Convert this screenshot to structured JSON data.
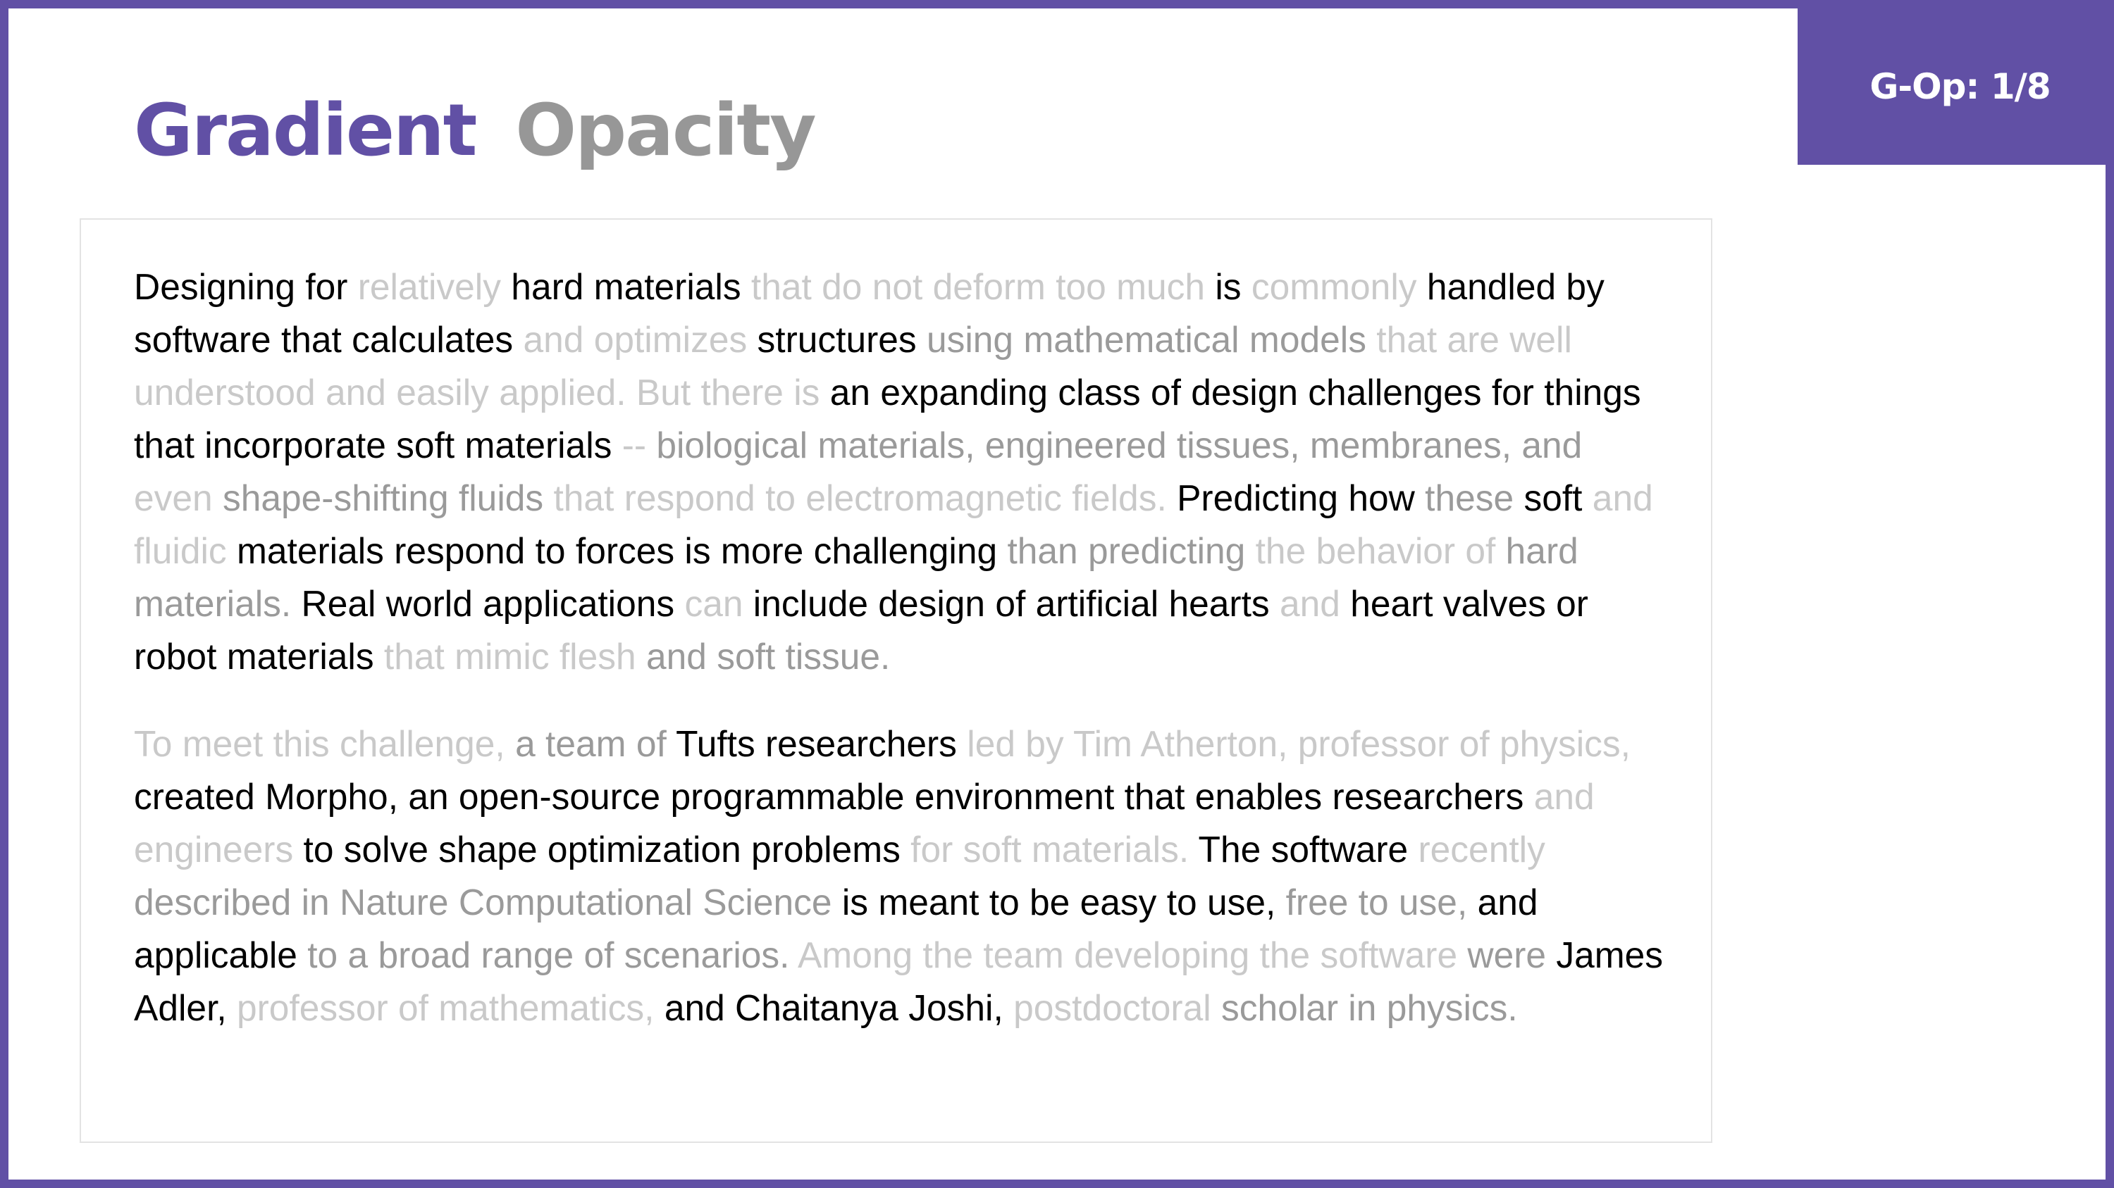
{
  "badge": "G-Op: 1/8",
  "title": {
    "bold": "Gradient",
    "light": "Opacity"
  },
  "paragraphs": [
    {
      "segments": [
        {
          "text": "Designing for ",
          "tone": 0
        },
        {
          "text": "relatively ",
          "tone": 2
        },
        {
          "text": "hard materials ",
          "tone": 0
        },
        {
          "text": "that do not deform too much ",
          "tone": 2
        },
        {
          "text": "is ",
          "tone": 0
        },
        {
          "text": "commonly ",
          "tone": 2
        },
        {
          "text": "handled by software that calculates ",
          "tone": 0
        },
        {
          "text": "and optimizes ",
          "tone": 2
        },
        {
          "text": "structures ",
          "tone": 0
        },
        {
          "text": "using mathematical models ",
          "tone": 1
        },
        {
          "text": "that are well understood and easily applied. But there is ",
          "tone": 2
        },
        {
          "text": "an expanding class of design challenges for things that incorporate soft materials ",
          "tone": 0
        },
        {
          "text": "-- ",
          "tone": 2
        },
        {
          "text": "biological materials, engineered tissues, membranes, ",
          "tone": 1
        },
        {
          "text": "and ",
          "tone": 1
        },
        {
          "text": "even ",
          "tone": 2
        },
        {
          "text": "shape-shifting fluids ",
          "tone": 1
        },
        {
          "text": "that respond to electromagnetic fields. ",
          "tone": 2
        },
        {
          "text": "Predicting how ",
          "tone": 0
        },
        {
          "text": "these ",
          "tone": 1
        },
        {
          "text": "soft ",
          "tone": 0
        },
        {
          "text": "and fluidic ",
          "tone": 2
        },
        {
          "text": "materials respond to forces is more challenging ",
          "tone": 0
        },
        {
          "text": "than predicting ",
          "tone": 1
        },
        {
          "text": "the behavior of ",
          "tone": 2
        },
        {
          "text": "hard materials. ",
          "tone": 1
        },
        {
          "text": "Real world applications ",
          "tone": 0
        },
        {
          "text": "can ",
          "tone": 2
        },
        {
          "text": "include design of artificial hearts ",
          "tone": 0
        },
        {
          "text": "and ",
          "tone": 2
        },
        {
          "text": "heart valves or robot materials ",
          "tone": 0
        },
        {
          "text": "that mimic flesh ",
          "tone": 2
        },
        {
          "text": "and soft tissue.",
          "tone": 1
        }
      ]
    },
    {
      "segments": [
        {
          "text": "To meet this challenge, ",
          "tone": 2
        },
        {
          "text": "a team of ",
          "tone": 1
        },
        {
          "text": "Tufts researchers ",
          "tone": 0
        },
        {
          "text": "led by Tim Atherton, professor of physics, ",
          "tone": 2
        },
        {
          "text": "created Morpho, an open-source programmable environment that enables researchers ",
          "tone": 0
        },
        {
          "text": "and engineers ",
          "tone": 2
        },
        {
          "text": "to solve shape optimization problems ",
          "tone": 0
        },
        {
          "text": "for soft materials. ",
          "tone": 2
        },
        {
          "text": "The software ",
          "tone": 0
        },
        {
          "text": "recently ",
          "tone": 2
        },
        {
          "text": "described in Nature Computational Science ",
          "tone": 1
        },
        {
          "text": "is meant to be easy to use, ",
          "tone": 0
        },
        {
          "text": "free to use, ",
          "tone": 1
        },
        {
          "text": "and applicable ",
          "tone": 0
        },
        {
          "text": "to a broad range of scenarios. ",
          "tone": 1
        },
        {
          "text": "Among the team ",
          "tone": 2
        },
        {
          "text": "developing the software ",
          "tone": 2
        },
        {
          "text": "were ",
          "tone": 1
        },
        {
          "text": "James Adler, ",
          "tone": 0
        },
        {
          "text": "professor of mathematics, ",
          "tone": 2
        },
        {
          "text": "and Chaitanya Joshi, ",
          "tone": 0
        },
        {
          "text": "postdoctoral ",
          "tone": 2
        },
        {
          "text": "scholar in physics.",
          "tone": 1
        }
      ]
    }
  ]
}
